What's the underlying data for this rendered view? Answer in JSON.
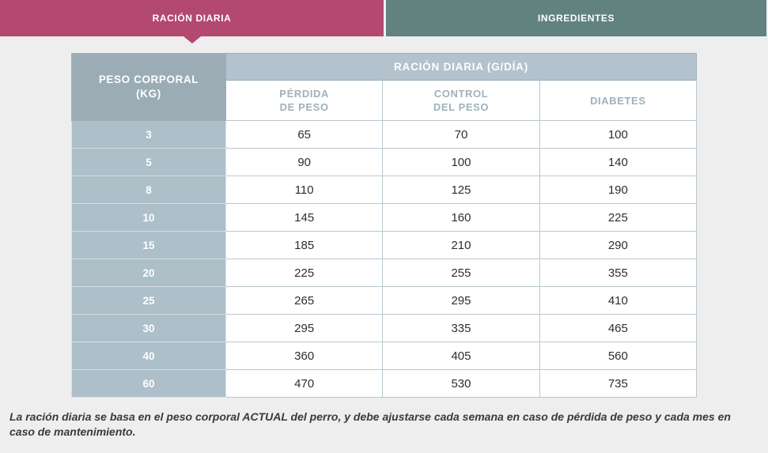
{
  "tabs": {
    "active_label": "RACIÓN DIARIA",
    "inactive_label": "INGREDIENTES"
  },
  "table": {
    "corner_header": "PESO CORPORAL\n(KG)",
    "span_header": "RACIÓN DIARIA (G/DÍA)",
    "columns": [
      "PÉRDIDA\nDE PESO",
      "CONTROL\nDEL PESO",
      "DIABETES"
    ],
    "rows": [
      {
        "weight": "3",
        "values": [
          "65",
          "70",
          "100"
        ]
      },
      {
        "weight": "5",
        "values": [
          "90",
          "100",
          "140"
        ]
      },
      {
        "weight": "8",
        "values": [
          "110",
          "125",
          "190"
        ]
      },
      {
        "weight": "10",
        "values": [
          "145",
          "160",
          "225"
        ]
      },
      {
        "weight": "15",
        "values": [
          "185",
          "210",
          "290"
        ]
      },
      {
        "weight": "20",
        "values": [
          "225",
          "255",
          "355"
        ]
      },
      {
        "weight": "25",
        "values": [
          "265",
          "295",
          "410"
        ]
      },
      {
        "weight": "30",
        "values": [
          "295",
          "335",
          "465"
        ]
      },
      {
        "weight": "40",
        "values": [
          "360",
          "405",
          "560"
        ]
      },
      {
        "weight": "60",
        "values": [
          "470",
          "530",
          "735"
        ]
      }
    ]
  },
  "footnote": "La ración diaria se basa en el peso corporal ACTUAL del perro, y debe ajustarse cada semana en caso de pérdida de peso y cada mes en caso de mantenimiento.",
  "colors": {
    "bg": "#eeeeee",
    "tab_active": "#b34870",
    "tab_inactive": "#61827f",
    "header_dark": "#9bacb5",
    "header_light": "#b3c2cc",
    "rowhead": "#adbfc9",
    "border_outer": "#9cb0ba",
    "border_cell": "#b9c8d0",
    "subheader_text": "#a0b1bc",
    "data_text": "#2e2e2e",
    "footnote_text": "#3a3a3a"
  }
}
